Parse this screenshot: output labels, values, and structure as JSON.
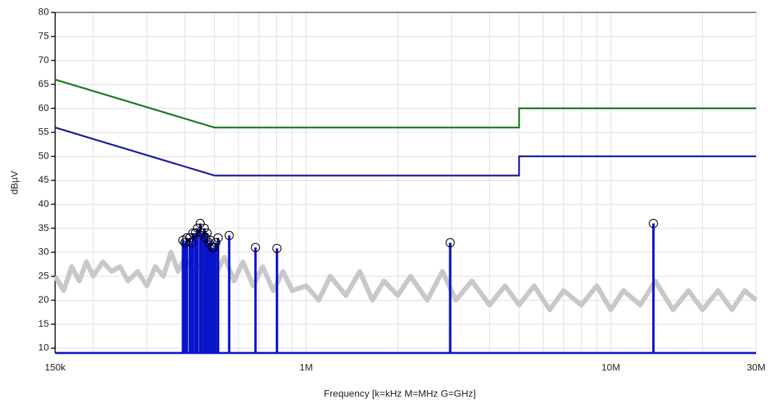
{
  "chart_data": {
    "type": "line",
    "x_label": "Frequency [k=kHz M=MHz G=GHz]",
    "y_label": "dBµV",
    "xscale": "log",
    "xlim": [
      150000,
      30000000
    ],
    "xticks": [
      {
        "value": 150000,
        "label": "150k"
      },
      {
        "value": 1000000,
        "label": "1M"
      },
      {
        "value": 10000000,
        "label": "10M"
      },
      {
        "value": 30000000,
        "label": "30M"
      }
    ],
    "xminor": [
      200000,
      300000,
      400000,
      500000,
      600000,
      700000,
      800000,
      900000,
      2000000,
      3000000,
      4000000,
      5000000,
      6000000,
      7000000,
      8000000,
      9000000,
      20000000
    ],
    "ylim": [
      9,
      80
    ],
    "yticks": [
      10,
      15,
      20,
      25,
      30,
      35,
      40,
      45,
      50,
      55,
      60,
      65,
      70,
      75,
      80
    ],
    "grid": true,
    "series": [
      {
        "color": "#c8c8c8",
        "mode": "band",
        "x": [
          150000,
          160000,
          170000,
          180000,
          190000,
          200000,
          215000,
          230000,
          245000,
          260000,
          280000,
          300000,
          320000,
          340000,
          360000,
          380000,
          400000,
          430000,
          460000,
          500000,
          540000,
          580000,
          620000,
          670000,
          720000,
          780000,
          840000,
          900000,
          1000000,
          1100000,
          1200000,
          1350000,
          1500000,
          1650000,
          1800000,
          2000000,
          2200000,
          2500000,
          2800000,
          3100000,
          3500000,
          4000000,
          4500000,
          5000000,
          5600000,
          6300000,
          7000000,
          8000000,
          9000000,
          10000000,
          11000000,
          12500000,
          14000000,
          16000000,
          18000000,
          20000000,
          22500000,
          25000000,
          27500000,
          30000000
        ],
        "values": [
          25,
          22,
          27,
          24,
          28,
          25,
          28,
          26,
          27,
          24,
          26,
          23,
          27,
          25,
          30,
          26,
          29,
          26,
          28,
          25,
          29,
          24,
          28,
          23,
          27,
          22,
          26,
          22,
          23,
          20,
          25,
          21,
          26,
          20,
          24,
          21,
          25,
          20,
          26,
          20,
          24,
          19,
          23,
          19,
          23,
          18,
          22,
          19,
          23,
          18,
          22,
          19,
          24,
          18,
          22,
          18,
          22,
          18,
          22,
          20
        ]
      },
      {
        "color": "#1a7a1a",
        "mode": "line",
        "x": [
          150000,
          500000,
          5000000,
          5000000,
          30000000
        ],
        "values": [
          66,
          56,
          56,
          60,
          60
        ]
      },
      {
        "color": "#1a1aa0",
        "mode": "line",
        "x": [
          150000,
          500000,
          5000000,
          5000000,
          30000000
        ],
        "values": [
          56,
          46,
          46,
          50,
          50
        ]
      },
      {
        "color": "#0a14c8",
        "mode": "stem",
        "x": [
          394000,
          400000,
          406000,
          415000,
          420000,
          425000,
          433000,
          440000,
          449000,
          455000,
          463000,
          468000,
          473000,
          480000,
          485000,
          492000,
          498000,
          505000,
          514000,
          559000,
          682000,
          802000,
          2970000,
          13800000
        ],
        "values": [
          32.5,
          32,
          33,
          33,
          32,
          34,
          34,
          35,
          36,
          34,
          35,
          33,
          34,
          32,
          32.5,
          31,
          31,
          32,
          33,
          33.5,
          31,
          30.8,
          32,
          36
        ]
      }
    ]
  }
}
